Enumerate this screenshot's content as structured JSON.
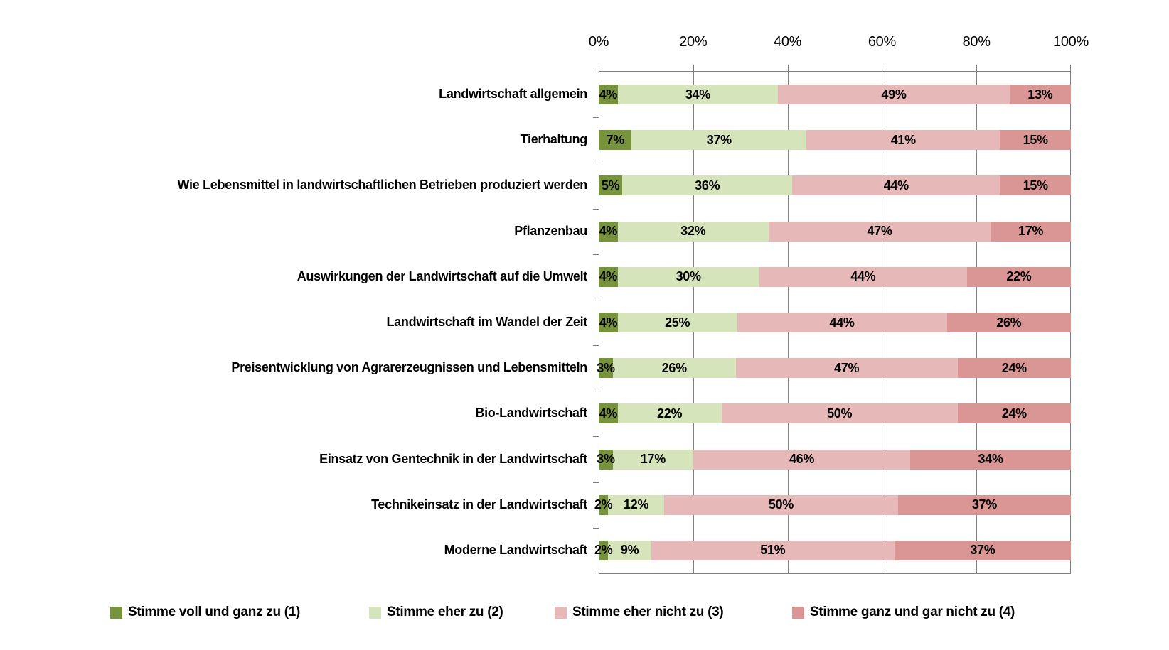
{
  "chart_data": {
    "type": "bar",
    "variant": "stacked-100-percent",
    "orientation": "horizontal",
    "title": "",
    "xlabel": "",
    "ylabel": "",
    "xlim": [
      0,
      100
    ],
    "grid": true,
    "x_ticks": [
      "0%",
      "20%",
      "40%",
      "60%",
      "80%",
      "100%"
    ],
    "legend_position": "bottom",
    "value_label_suffix": "%",
    "categories": [
      "Landwirtschaft allgemein",
      "Tierhaltung",
      "Wie Lebensmittel in landwirtschaftlichen Betrieben produziert werden",
      "Pflanzenbau",
      "Auswirkungen der Landwirtschaft auf die Umwelt",
      "Landwirtschaft im Wandel der Zeit",
      "Preisentwicklung von Agrarerzeugnissen und Lebensmitteln",
      "Bio-Landwirtschaft",
      "Einsatz von Gentechnik in der Landwirtschaft",
      "Technikeinsatz in der Landwirtschaft",
      "Moderne Landwirtschaft"
    ],
    "series": [
      {
        "name": "Stimme voll und ganz zu (1)",
        "color": "#77933C",
        "values": [
          4,
          7,
          5,
          4,
          4,
          4,
          3,
          4,
          3,
          2,
          2
        ]
      },
      {
        "name": "Stimme eher zu (2)",
        "color": "#D6E4BC",
        "values": [
          34,
          37,
          36,
          32,
          30,
          25,
          26,
          22,
          17,
          12,
          9
        ]
      },
      {
        "name": "Stimme eher nicht zu (3)",
        "color": "#E6B9B8",
        "values": [
          49,
          41,
          44,
          47,
          44,
          44,
          47,
          50,
          46,
          50,
          51
        ]
      },
      {
        "name": "Stimme ganz und gar nicht zu (4)",
        "color": "#D99694",
        "values": [
          13,
          15,
          15,
          17,
          22,
          26,
          24,
          24,
          34,
          37,
          37
        ]
      }
    ]
  },
  "style": {
    "grid_color": "#7F7F7F",
    "label_color": "#000000",
    "background": "#FFFFFF"
  }
}
